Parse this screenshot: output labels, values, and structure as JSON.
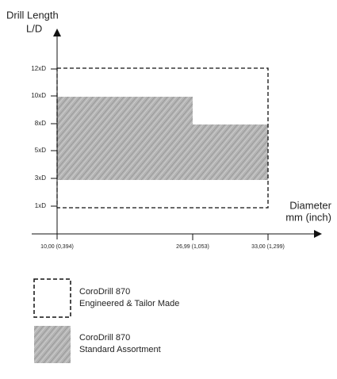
{
  "axes": {
    "y_title": [
      "Drill Length",
      "L/D"
    ],
    "x_title": [
      "Diameter",
      "mm (inch)"
    ],
    "y_ticks": [
      "12xD",
      "10xD",
      "8xD",
      "5xD",
      "3xD",
      "1xD"
    ],
    "x_ticks": [
      "10,00 (0,394)",
      "26,99 (1,053)",
      "33,00 (1,299)"
    ]
  },
  "legend": [
    {
      "lines": [
        "CoroDrill 870",
        "Engineered & Tailor Made"
      ]
    },
    {
      "lines": [
        "CoroDrill 870",
        "Standard Assortment"
      ]
    }
  ]
}
